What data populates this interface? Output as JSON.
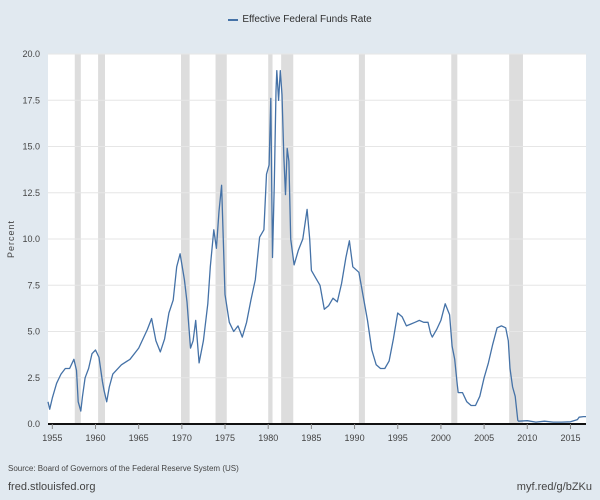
{
  "colors": {
    "series": "#4572a7",
    "recession": "#dddddd",
    "grid": "#e6e6e6",
    "plot_bg": "#ffffff",
    "page_bg": "#e1e9f0"
  },
  "footer": {
    "source": "Source: Board of Governors of the Federal Reserve System (US)",
    "site": "fred.stlouisfed.org",
    "shortlink": "myf.red/g/bZKu"
  },
  "chart_data": {
    "type": "line",
    "title": "",
    "xlabel": "",
    "ylabel": "Percent",
    "xlim": [
      1954.5,
      2016.8
    ],
    "ylim": [
      0,
      20
    ],
    "grid": true,
    "legend": "top-center",
    "xticks": [
      1955,
      1960,
      1965,
      1970,
      1975,
      1980,
      1985,
      1990,
      1995,
      2000,
      2005,
      2010,
      2015
    ],
    "ytick_labels": [
      "0.0",
      "2.5",
      "5.0",
      "7.5",
      "10.0",
      "12.5",
      "15.0",
      "17.5",
      "20.0"
    ],
    "ytick_values": [
      0,
      2.5,
      5,
      7.5,
      10,
      12.5,
      15,
      17.5,
      20
    ],
    "recessions": [
      [
        1957.6,
        1958.3
      ],
      [
        1960.3,
        1961.1
      ],
      [
        1969.9,
        1970.9
      ],
      [
        1973.9,
        1975.2
      ],
      [
        1980.0,
        1980.5
      ],
      [
        1981.5,
        1982.9
      ],
      [
        1990.5,
        1991.2
      ],
      [
        2001.2,
        2001.9
      ],
      [
        2007.9,
        2009.5
      ]
    ],
    "series": [
      {
        "name": "Effective Federal Funds Rate",
        "x": [
          1954.5,
          1954.7,
          1955.0,
          1955.5,
          1956.0,
          1956.5,
          1957.0,
          1957.5,
          1957.8,
          1958.0,
          1958.3,
          1958.5,
          1958.8,
          1959.2,
          1959.6,
          1960.0,
          1960.4,
          1960.8,
          1961.0,
          1961.3,
          1961.6,
          1962.0,
          1963.0,
          1964.0,
          1965.0,
          1966.0,
          1966.5,
          1967.0,
          1967.5,
          1968.0,
          1968.5,
          1969.0,
          1969.4,
          1969.8,
          1970.3,
          1970.6,
          1971.0,
          1971.3,
          1971.6,
          1972.0,
          1972.5,
          1973.0,
          1973.3,
          1973.7,
          1974.0,
          1974.3,
          1974.6,
          1975.0,
          1975.5,
          1976.0,
          1976.5,
          1977.0,
          1977.5,
          1978.0,
          1978.5,
          1979.0,
          1979.5,
          1979.8,
          1980.1,
          1980.3,
          1980.5,
          1980.7,
          1980.9,
          1981.0,
          1981.2,
          1981.4,
          1981.6,
          1981.8,
          1982.0,
          1982.2,
          1982.4,
          1982.6,
          1982.8,
          1983.0,
          1983.5,
          1984.0,
          1984.5,
          1984.8,
          1985.0,
          1985.5,
          1986.0,
          1986.5,
          1987.0,
          1987.5,
          1988.0,
          1988.5,
          1989.0,
          1989.4,
          1989.8,
          1990.5,
          1991.0,
          1991.5,
          1992.0,
          1992.5,
          1993.0,
          1993.5,
          1994.0,
          1994.5,
          1995.0,
          1995.5,
          1996.0,
          1996.5,
          1997.0,
          1997.5,
          1998.0,
          1998.5,
          1998.8,
          1999.0,
          1999.5,
          2000.0,
          2000.5,
          2001.0,
          2001.3,
          2001.6,
          2001.9,
          2002.0,
          2002.5,
          2003.0,
          2003.5,
          2004.0,
          2004.5,
          2005.0,
          2005.5,
          2006.0,
          2006.5,
          2007.0,
          2007.5,
          2007.8,
          2008.0,
          2008.3,
          2008.6,
          2008.9,
          2009.0,
          2010.0,
          2011.0,
          2012.0,
          2013.0,
          2014.0,
          2015.0,
          2015.8,
          2016.0,
          2016.5,
          2016.8
        ],
        "y": [
          1.2,
          0.8,
          1.4,
          2.2,
          2.7,
          3.0,
          3.0,
          3.5,
          2.9,
          1.2,
          0.7,
          1.5,
          2.5,
          3.0,
          3.8,
          4.0,
          3.6,
          2.3,
          1.8,
          1.2,
          2.0,
          2.7,
          3.2,
          3.5,
          4.1,
          5.1,
          5.7,
          4.5,
          3.9,
          4.6,
          6.0,
          6.7,
          8.5,
          9.2,
          7.8,
          6.6,
          4.1,
          4.5,
          5.6,
          3.3,
          4.5,
          6.5,
          8.5,
          10.5,
          9.5,
          11.5,
          12.9,
          7.0,
          5.5,
          5.0,
          5.3,
          4.7,
          5.5,
          6.7,
          7.8,
          10.1,
          10.5,
          13.5,
          14.0,
          17.6,
          9.0,
          13.0,
          18.0,
          19.1,
          17.5,
          19.1,
          17.8,
          14.5,
          12.4,
          14.9,
          14.2,
          10.0,
          9.3,
          8.6,
          9.4,
          10.0,
          11.6,
          10.0,
          8.3,
          7.9,
          7.5,
          6.2,
          6.4,
          6.8,
          6.6,
          7.6,
          9.0,
          9.9,
          8.5,
          8.2,
          6.9,
          5.6,
          4.0,
          3.2,
          3.0,
          3.0,
          3.4,
          4.6,
          6.0,
          5.8,
          5.3,
          5.4,
          5.5,
          5.6,
          5.5,
          5.5,
          4.9,
          4.7,
          5.1,
          5.6,
          6.5,
          5.9,
          4.2,
          3.5,
          2.1,
          1.7,
          1.7,
          1.2,
          1.0,
          1.0,
          1.5,
          2.5,
          3.3,
          4.3,
          5.2,
          5.3,
          5.2,
          4.5,
          3.0,
          2.0,
          1.5,
          0.2,
          0.15,
          0.18,
          0.1,
          0.15,
          0.1,
          0.1,
          0.12,
          0.24,
          0.37,
          0.4,
          0.4
        ]
      }
    ]
  }
}
